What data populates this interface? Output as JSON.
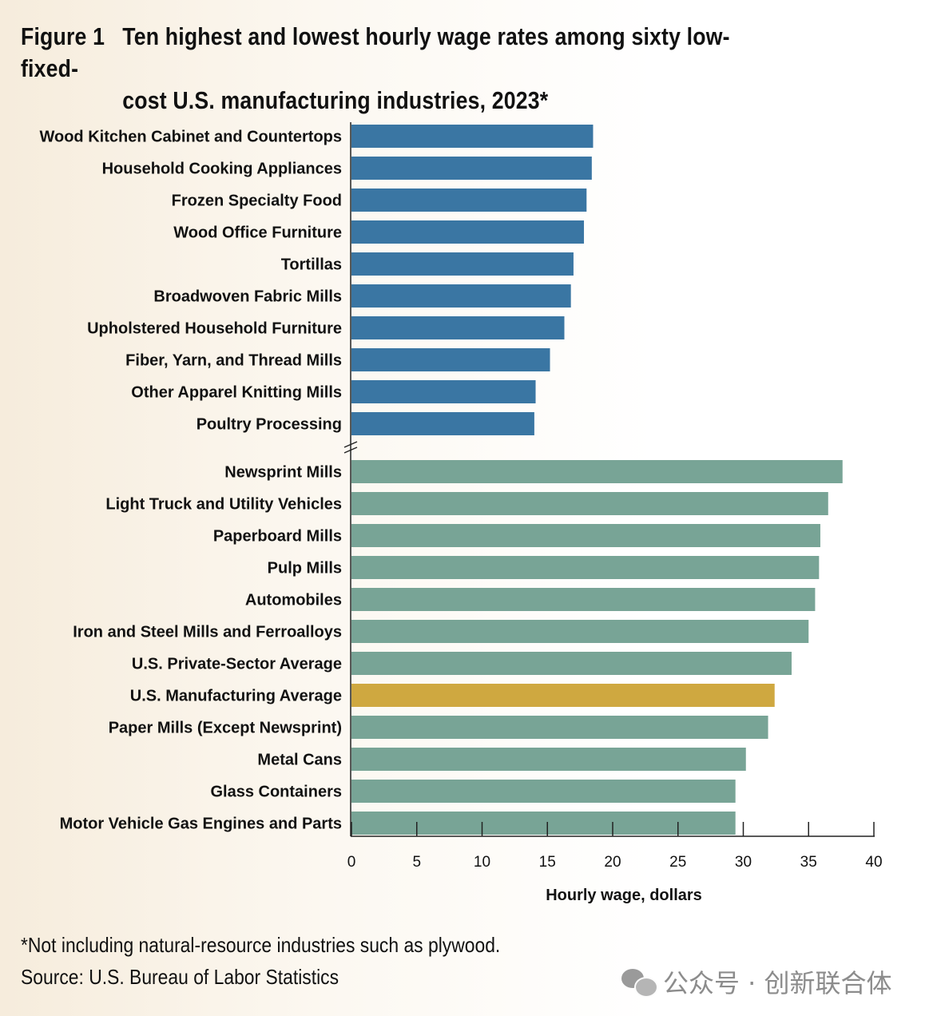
{
  "figure": {
    "label": "Figure 1",
    "title_line1": "Ten highest and lowest hourly wage rates among sixty low-fixed-",
    "title_line2": "cost U.S. manufacturing industries, 2023*"
  },
  "chart_data": {
    "type": "bar",
    "orientation": "horizontal",
    "xlabel": "Hourly wage, dollars",
    "xlim": [
      0,
      40
    ],
    "xticks": [
      0,
      5,
      10,
      15,
      20,
      25,
      30,
      35,
      40
    ],
    "axis_break": true,
    "groups": [
      {
        "name": "lowest",
        "color": "#3a76a3",
        "categories": [
          "Wood Kitchen Cabinet and Countertops",
          "Household Cooking Appliances",
          "Frozen Specialty Food",
          "Wood Office Furniture",
          "Tortillas",
          "Broadwoven Fabric Mills",
          "Upholstered Household Furniture",
          "Fiber, Yarn, and Thread Mills",
          "Other Apparel Knitting Mills",
          "Poultry Processing"
        ],
        "values": [
          18.5,
          18.4,
          18.0,
          17.8,
          17.0,
          16.8,
          16.3,
          15.2,
          14.1,
          14.0
        ]
      },
      {
        "name": "highest",
        "color": "#78a496",
        "highlight_color": "#cfa840",
        "highlight": "U.S. Manufacturing Average",
        "categories": [
          "Newsprint Mills",
          "Light Truck and Utility Vehicles",
          "Paperboard Mills",
          "Pulp Mills",
          "Automobiles",
          "Iron and Steel Mills and Ferroalloys",
          "U.S. Private-Sector Average",
          "U.S. Manufacturing Average",
          "Paper Mills (Except Newsprint)",
          "Metal Cans",
          "Glass Containers",
          "Motor Vehicle Gas Engines and Parts"
        ],
        "values": [
          37.6,
          36.5,
          35.9,
          35.8,
          35.5,
          35.0,
          33.7,
          32.4,
          31.9,
          30.2,
          29.4,
          29.4
        ]
      }
    ]
  },
  "footnote": "*Not including natural-resource industries such as plywood.",
  "source": "Source: U.S. Bureau of Labor Statistics",
  "watermark": "公众号 · 创新联合体"
}
